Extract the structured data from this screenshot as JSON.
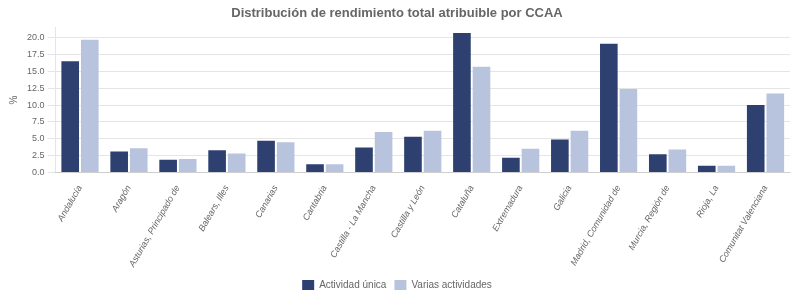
{
  "chart_data": {
    "type": "bar",
    "title": "Distribución de rendimiento total atribuible por CCAA",
    "categories": [
      "Andalucía",
      "Aragón",
      "Asturias, Principado de",
      "Balears, Illes",
      "Canarias",
      "Cantabria",
      "Castilla - La Mancha",
      "Castilla y León",
      "Cataluña",
      "Extremadura",
      "Galicia",
      "Madrid, Comunidad de",
      "Murcia, Región de",
      "Rioja, La",
      "Comunitat Valenciana"
    ],
    "series": [
      {
        "name": "Actividad única",
        "color": "#2d4070",
        "values": [
          16.5,
          3.1,
          1.9,
          3.3,
          4.7,
          1.2,
          3.7,
          5.3,
          20.7,
          2.2,
          4.9,
          19.1,
          2.7,
          1.0,
          10.0
        ]
      },
      {
        "name": "Varias actividades",
        "color": "#b8c4de",
        "values": [
          19.7,
          3.6,
          2.0,
          2.8,
          4.5,
          1.2,
          6.0,
          6.2,
          15.7,
          3.5,
          6.2,
          12.4,
          3.4,
          1.0,
          11.7
        ]
      }
    ],
    "ylabel": "%",
    "ylim": [
      0,
      21.5
    ],
    "yticks": [
      {
        "value": 0.0,
        "label": "0.0"
      },
      2.5,
      {
        "value": 5.0,
        "label": "5.0"
      },
      7.5,
      {
        "value": 10.0,
        "label": "10.0"
      },
      12.5,
      {
        "value": 15.0,
        "label": "15.0"
      },
      17.5,
      {
        "value": 20.0,
        "label": "20.0"
      }
    ],
    "grid": true,
    "legend": "bottom"
  }
}
